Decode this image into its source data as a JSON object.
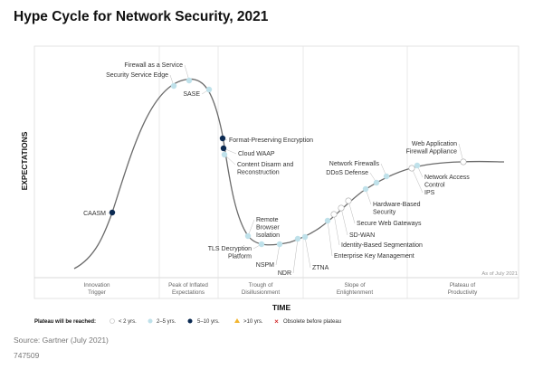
{
  "title": "Hype Cycle for Network Security, 2021",
  "y_axis": "EXPECTATIONS",
  "x_axis": "TIME",
  "as_of": "As of July 2021",
  "phases": [
    [
      "Innovation",
      "Trigger"
    ],
    [
      "Peak of Inflated",
      "Expectations"
    ],
    [
      "Trough of",
      "Disillusionment"
    ],
    [
      "Slope of",
      "Enlightenment"
    ],
    [
      "Plateau of",
      "Productivity"
    ]
  ],
  "colors": {
    "lt2": "#ffffff",
    "y2to5": "#bfe1ea",
    "y5to10": "#0b2a52",
    "gt10": "#f2b530",
    "obsolete": "#d32f2f",
    "curve": "#666666"
  },
  "technologies": [
    {
      "name": "CAASM",
      "plateau": "5-10"
    },
    {
      "name": "Security Service Edge",
      "plateau": "2-5"
    },
    {
      "name": "Firewall as a Service",
      "plateau": "2-5"
    },
    {
      "name": "SASE",
      "plateau": "2-5"
    },
    {
      "name": "Format-Preserving Encryption",
      "plateau": "5-10"
    },
    {
      "name": "Cloud WAAP",
      "plateau": "5-10"
    },
    {
      "name": "Content Disarm and",
      "name2": "Reconstruction",
      "plateau": "2-5"
    },
    {
      "name": "Remote",
      "name2": "Browser",
      "name3": "Isolation",
      "plateau": "2-5"
    },
    {
      "name": "TLS Decryption",
      "name2": "Platform",
      "plateau": "2-5"
    },
    {
      "name": "NSPM",
      "plateau": "2-5"
    },
    {
      "name": "NDR",
      "plateau": "2-5"
    },
    {
      "name": "ZTNA",
      "plateau": "2-5"
    },
    {
      "name": "Enterprise Key Management",
      "plateau": "2-5"
    },
    {
      "name": "Identity-Based Segmentation",
      "plateau": "<2"
    },
    {
      "name": "SD-WAN",
      "plateau": "<2"
    },
    {
      "name": "Secure Web Gateways",
      "plateau": "<2"
    },
    {
      "name": "Hardware-Based",
      "name2": "Security",
      "plateau": "2-5"
    },
    {
      "name": "DDoS Defense",
      "plateau": "2-5"
    },
    {
      "name": "Network Firewalls",
      "plateau": "2-5"
    },
    {
      "name": "IPS",
      "plateau": "<2"
    },
    {
      "name": "Network Access",
      "name2": "Control",
      "plateau": "2-5"
    },
    {
      "name": "Web Application",
      "name2": "Firewall Appliance",
      "plateau": "<2"
    }
  ],
  "legend": {
    "title": "Plateau will be reached:",
    "items": [
      "< 2 yrs.",
      "2–5 yrs.",
      "5–10 yrs.",
      ">10 yrs.",
      "Obsolete before plateau"
    ]
  },
  "source": "Source: Gartner (July 2021)",
  "id": "747509"
}
